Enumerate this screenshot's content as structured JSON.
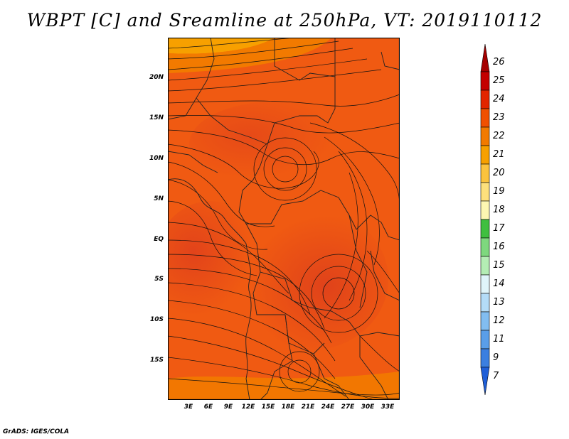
{
  "title": "WBPT [C] and Sreamline at 250hPa, VT: 2019110112",
  "lat_ticks": [
    "20N",
    "15N",
    "10N",
    "5N",
    "EQ",
    "5S",
    "10S",
    "15S"
  ],
  "lon_ticks": [
    "3E",
    "6E",
    "9E",
    "12E",
    "15E",
    "18E",
    "21E",
    "24E",
    "27E",
    "30E",
    "33E"
  ],
  "colorbar": {
    "labels": [
      "26",
      "25",
      "24",
      "23",
      "22",
      "21",
      "20",
      "19",
      "18",
      "17",
      "16",
      "15",
      "14",
      "13",
      "12",
      "11",
      "9",
      "7"
    ],
    "colors": [
      "#a50000",
      "#c40000",
      "#e22500",
      "#f05000",
      "#f27a00",
      "#f7a000",
      "#fbc33e",
      "#fde07c",
      "#fdf7b2",
      "#3fbf3f",
      "#7ed87e",
      "#b4edb4",
      "#e0f5fa",
      "#b4dcf7",
      "#82bdf0",
      "#5a9ee8",
      "#3b7fe0",
      "#1f5fd8"
    ]
  },
  "credit": "GrADS: IGES/COLA"
}
